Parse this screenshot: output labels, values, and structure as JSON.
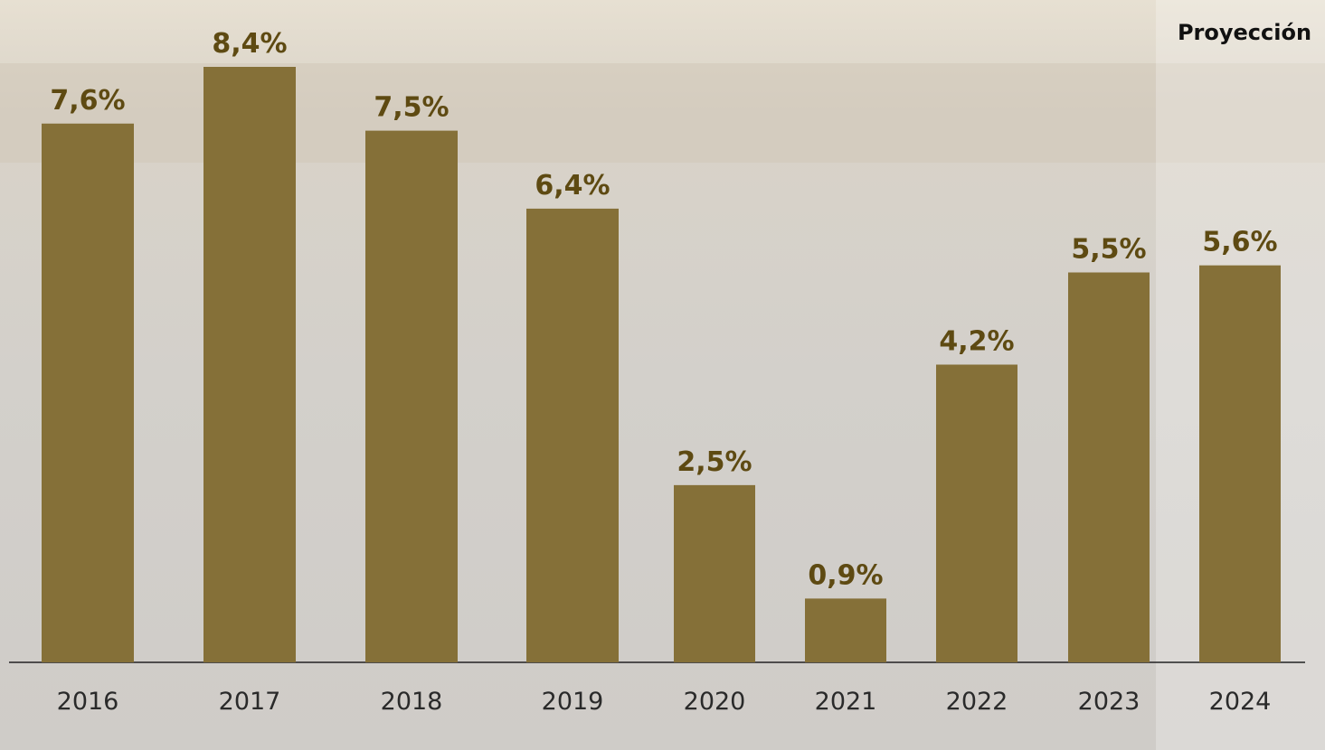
{
  "chart_data": {
    "type": "bar",
    "annotation": "Proyección",
    "categories": [
      "2016",
      "2017",
      "2018",
      "2019",
      "2020",
      "2021",
      "2022",
      "2023",
      "2024"
    ],
    "values": [
      7.6,
      8.4,
      7.5,
      6.4,
      2.5,
      0.9,
      4.2,
      5.5,
      5.6
    ],
    "value_labels": [
      "7,6%",
      "8,4%",
      "7,5%",
      "6,4%",
      "2,5%",
      "0,9%",
      "4,2%",
      "5,5%",
      "5,6%"
    ],
    "color": "#857038"
  }
}
